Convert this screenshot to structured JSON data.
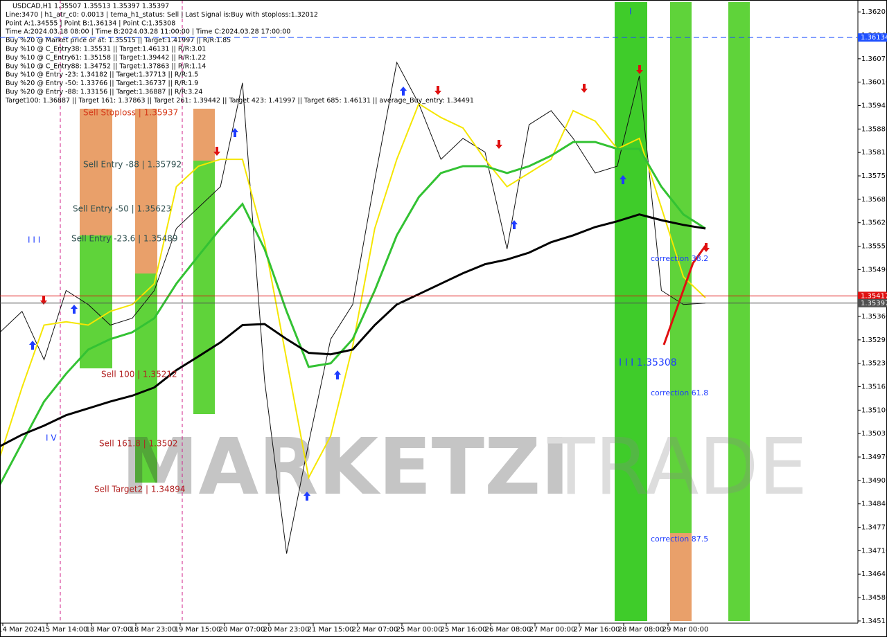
{
  "chart_data": {
    "type": "line",
    "header_lines": [
      "USDCAD,H1  1.35507 1.35513 1.35397 1.35397",
      "Line:3470 | h1_atr_c0: 0.0013 | tema_h1_status: Sell | Last Signal is:Buy with stoploss:1.32012",
      "Point A:1.34555 | Point B:1.36134 | Point C:1.35308",
      "Time A:2024.03.18 08:00 | Time B:2024.03.28 11:00:00 | Time C:2024.03.28 17:00:00",
      "Buy %20 @ Market price or at: 1.35515 || Target:1.41997 || R/R:1.85",
      "Buy %10 @ C_Entry38: 1.35531 || Target:1.46131 || R/R:3.01",
      "Buy %10 @ C_Entry61: 1.35158 || Target:1.39442 || R/R:1.22",
      "Buy %10 @ C_Entry88: 1.34752 || Target:1.37863 || R/R:1.14",
      "Buy %10 @ Entry -23: 1.34182 || Target:1.37713 || R/R:1.5",
      "Buy %20 @ Entry -50: 1.33766 || Target:1.36737 || R/R:1.9",
      "Buy %20 @ Entry -88: 1.33156 || Target:1.36887 || R/R:3.24",
      "Target100: 1.36887 || Target 161: 1.37863 || Target 261: 1.39442 || Target 423: 1.41997 || Target 685: 1.46131 || average_Buy_entry: 1.34491"
    ],
    "annotations": [
      {
        "text": "Sell Stoploss | 1.35937",
        "color": "#d63a1a"
      },
      {
        "text": "Sell Entry -88 | 1.35792",
        "color": "#2f4f4f"
      },
      {
        "text": "Sell Entry -50 | 1.35623",
        "color": "#2f4f4f"
      },
      {
        "text": "Sell Entry -23.6 | 1.35489",
        "color": "#2f4f4f"
      },
      {
        "text": "Sell 100 | 1.35212",
        "color": "#b22222"
      },
      {
        "text": "Sell 161.8 | 1.3502",
        "color": "#b22222"
      },
      {
        "text": "Sell Target2 | 1.34894",
        "color": "#b22222"
      },
      {
        "text": "I I I",
        "color": "#1e3cff"
      },
      {
        "text": "I V",
        "color": "#1e3cff"
      },
      {
        "text": "I",
        "color": "#1e3cff"
      },
      {
        "text": "I I I 1.35308",
        "color": "#1e3cff"
      },
      {
        "text": "correction 38.2",
        "color": "#1e3cff"
      },
      {
        "text": "correction 61.8",
        "color": "#1e3cff"
      },
      {
        "text": "correction 87.5",
        "color": "#1e3cff"
      }
    ],
    "watermark": [
      "MARKETZI",
      "TRADE"
    ],
    "time_labels": [
      "14 Mar 2024",
      "15 Mar 14:00",
      "18 Mar 07:00",
      "18 Mar 23:00",
      "19 Mar 15:00",
      "20 Mar 07:00",
      "20 Mar 23:00",
      "21 Mar 15:00",
      "22 Mar 07:00",
      "25 Mar 00:00",
      "25 Mar 16:00",
      "26 Mar 08:00",
      "27 Mar 00:00",
      "27 Mar 16:00",
      "28 Mar 08:00",
      "29 Mar 00:00"
    ],
    "ylim": [
      1.34509,
      1.36238
    ],
    "yticks": [
      1.36205,
      {
        "value": 1.3614,
        "label": "1.36140"
      },
      1.36075,
      {
        "value": 1.3601,
        "label": "1.36010"
      },
      1.35945,
      {
        "value": 1.3588,
        "label": "1.35880"
      },
      1.35815,
      {
        "value": 1.3575,
        "label": "1.35750"
      },
      1.35685,
      {
        "value": 1.3562,
        "label": "1.35620"
      },
      1.35555,
      {
        "value": 1.3549,
        "label": "1.35490"
      },
      {
        "value": 1.3536,
        "label": "1.35360"
      },
      1.35295,
      {
        "value": 1.3523,
        "label": "1.35230"
      },
      1.35165,
      {
        "value": 1.351,
        "label": "1.35100"
      },
      1.35035,
      {
        "value": 1.3497,
        "label": "1.34970"
      },
      1.34905,
      {
        "value": 1.3484,
        "label": "1.34840"
      },
      1.34775,
      {
        "value": 1.3471,
        "label": "1.34710"
      },
      1.34645,
      {
        "value": 1.3458,
        "label": "1.34580"
      },
      1.34515
    ],
    "price_tags": [
      {
        "value": 1.36134,
        "color": "#1e50ff",
        "dashed": true
      },
      {
        "value": 1.35417,
        "color": "#e01010",
        "dashed": false
      },
      {
        "value": 1.35397,
        "color": "#505050",
        "dashed": false
      }
    ],
    "series": [
      {
        "name": "price",
        "color": "#111111",
        "width": 1,
        "values": [
          1.35316,
          1.35374,
          1.3524,
          1.35432,
          1.35393,
          1.35336,
          1.35355,
          1.35432,
          1.35604,
          1.35662,
          1.3572,
          1.36008,
          1.35182,
          1.34702,
          1.35009,
          1.35297,
          1.35393,
          1.35739,
          1.36065,
          1.3595,
          1.35796,
          1.35854,
          1.35816,
          1.35547,
          1.35892,
          1.35931,
          1.35854,
          1.35758,
          1.35777,
          1.36027,
          1.35432,
          1.35393,
          1.35397
        ]
      },
      {
        "name": "yellow",
        "color": "#f5e600",
        "width": 2,
        "values": [
          1.34971,
          1.35163,
          1.35336,
          1.35345,
          1.35336,
          1.35374,
          1.35393,
          1.35451,
          1.3572,
          1.35777,
          1.35796,
          1.35796,
          1.35566,
          1.3524,
          1.34913,
          1.35028,
          1.35278,
          1.35604,
          1.35796,
          1.3595,
          1.35912,
          1.35883,
          1.35796,
          1.3572,
          1.35758,
          1.35796,
          1.35931,
          1.35902,
          1.35825,
          1.35854,
          1.35662,
          1.3547,
          1.35412
        ]
      },
      {
        "name": "green",
        "color": "#33c233",
        "width": 3,
        "values": [
          1.34894,
          1.35009,
          1.35124,
          1.35201,
          1.35268,
          1.35297,
          1.35316,
          1.35355,
          1.35451,
          1.35528,
          1.35604,
          1.35672,
          1.35547,
          1.35374,
          1.3522,
          1.3523,
          1.35297,
          1.35432,
          1.35585,
          1.35691,
          1.35758,
          1.35777,
          1.35777,
          1.35758,
          1.35777,
          1.35806,
          1.35844,
          1.35844,
          1.35825,
          1.35825,
          1.3572,
          1.35643,
          1.35604
        ]
      },
      {
        "name": "black",
        "color": "#000000",
        "width": 3,
        "values": [
          1.35,
          1.35032,
          1.35057,
          1.35086,
          1.35105,
          1.35124,
          1.3514,
          1.35163,
          1.35211,
          1.35249,
          1.35288,
          1.35336,
          1.35339,
          1.35297,
          1.35259,
          1.35255,
          1.35268,
          1.35336,
          1.35393,
          1.35422,
          1.35451,
          1.3548,
          1.35505,
          1.35518,
          1.35537,
          1.35566,
          1.35585,
          1.35608,
          1.35624,
          1.35643,
          1.35627,
          1.35614,
          1.35604
        ]
      }
    ]
  }
}
